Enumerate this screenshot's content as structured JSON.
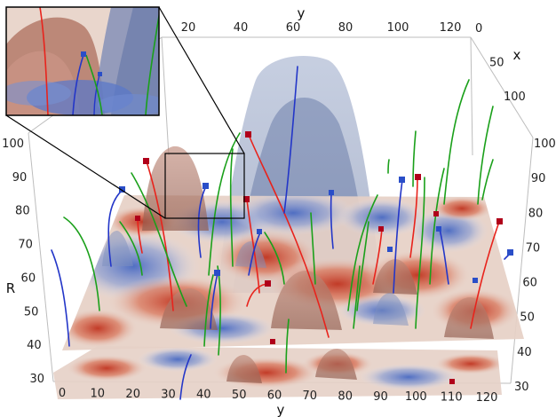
{
  "chart_data": {
    "type": "3d-volume-scene",
    "axes": {
      "y_top": {
        "label": "y",
        "ticks": [
          "20",
          "40",
          "60",
          "80",
          "100",
          "120"
        ]
      },
      "x_right": {
        "label": "x",
        "ticks": [
          "0",
          "50",
          "100"
        ]
      },
      "y_bottom": {
        "label": "y",
        "ticks": [
          "0",
          "10",
          "20",
          "30",
          "40",
          "50",
          "60",
          "70",
          "80",
          "90",
          "100",
          "110",
          "120"
        ]
      },
      "r_left": {
        "label": "R",
        "ticks": [
          "30",
          "40",
          "50",
          "60",
          "70",
          "80",
          "90",
          "100"
        ]
      },
      "r_right": {
        "ticks": [
          "30",
          "40",
          "50",
          "60",
          "70",
          "80",
          "90",
          "100"
        ]
      }
    },
    "slice_planes_R": [
      34,
      67
    ],
    "colors": {
      "high": "#b4533a",
      "low": "#4a6fc0",
      "mid": "#e8d2c8",
      "isosurface": "#8a9cc4",
      "streamline_red": "#e8231c",
      "streamline_blue": "#2336c8",
      "streamline_green": "#1aa01a",
      "seed_red": "#b0001a",
      "seed_blue": "#2a4ec8"
    },
    "inset": {
      "shows": "zoom-detail"
    }
  }
}
